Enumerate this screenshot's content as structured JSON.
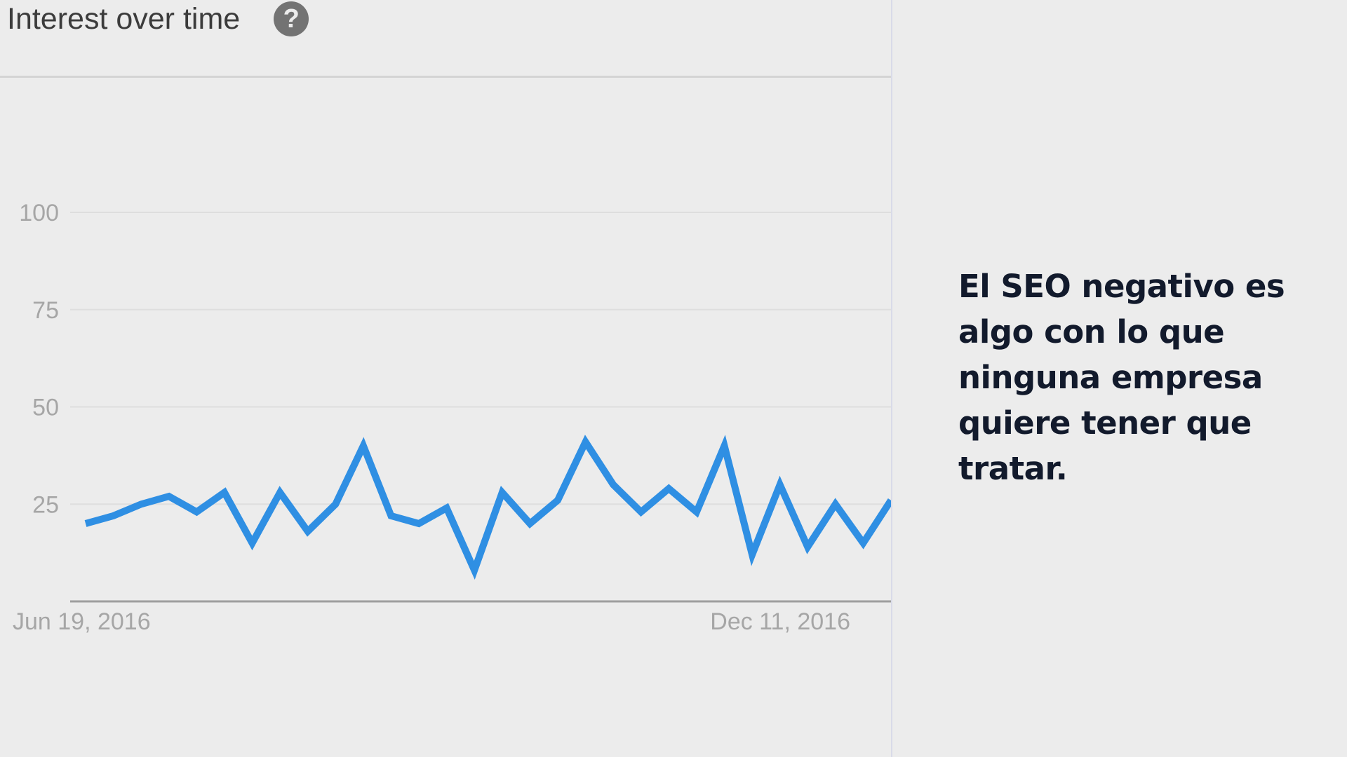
{
  "chart_title": "Interest over time",
  "help_icon": "help-circle-icon",
  "caption": "El SEO negativo es algo con lo que ninguna empresa quiere tener que tratar.",
  "colors": {
    "background": "#ececec",
    "line": "#2f8fe3",
    "gridline": "#dedede",
    "axis": "#9e9e9e",
    "tick_label": "#a6a6a6",
    "caption_text": "#121a2c"
  },
  "chart_data": {
    "type": "line",
    "title": "Interest over time",
    "xlabel": "",
    "ylabel": "",
    "ylim": [
      0,
      100
    ],
    "yticks": [
      25,
      50,
      75,
      100
    ],
    "x_tick_labels": [
      "Jun 19, 2016",
      "Dec 11, 2016"
    ],
    "grid": true,
    "series": [
      {
        "values": [
          20,
          22,
          25,
          27,
          23,
          28,
          15,
          28,
          18,
          25,
          40,
          22,
          20,
          24,
          8,
          28,
          20,
          26,
          41,
          30,
          23,
          29,
          23,
          40,
          12,
          30,
          14,
          25,
          15,
          26
        ]
      }
    ]
  }
}
